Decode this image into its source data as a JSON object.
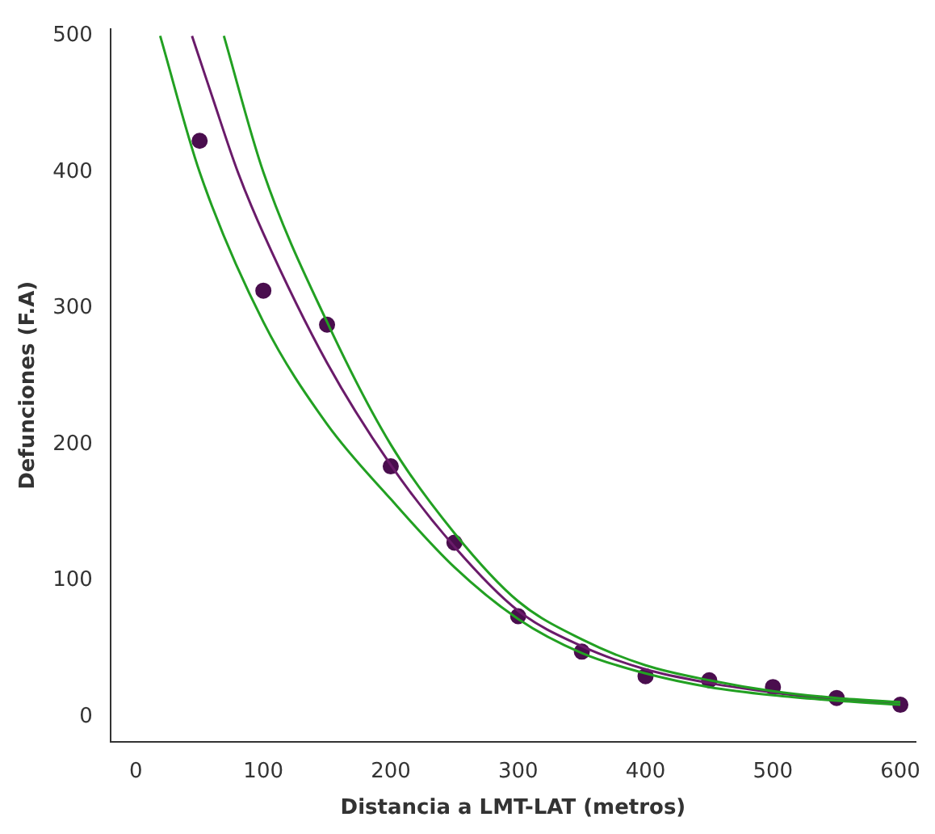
{
  "chart_data": {
    "type": "scatter",
    "xlabel": "Distancia a LMT-LAT (metros)",
    "ylabel": "Defunciones (F.A)",
    "xlim": [
      -20,
      612
    ],
    "ylim": [
      -18,
      505
    ],
    "xticks": [
      0,
      100,
      200,
      300,
      400,
      500,
      600
    ],
    "yticks": [
      0,
      100,
      200,
      300,
      400,
      500
    ],
    "grid": false,
    "marker": "circle",
    "series": [
      {
        "type": "line",
        "marker": "none",
        "color": "#22a022",
        "x": [
          69,
          100,
          150,
          200,
          250,
          300,
          350,
          400,
          450,
          500,
          550,
          600
        ],
        "values": [
          500,
          400,
          290,
          200,
          135,
          85,
          57,
          38,
          27,
          19,
          14,
          11
        ]
      },
      {
        "type": "line",
        "marker": "none",
        "color": "#22a022",
        "x": [
          19,
          50,
          100,
          150,
          200,
          250,
          300,
          350,
          400,
          450,
          500,
          550,
          600
        ],
        "values": [
          500,
          400,
          290,
          215,
          160,
          110,
          72,
          47,
          32,
          22,
          16,
          12,
          9
        ]
      },
      {
        "type": "line",
        "marker": "none",
        "color": "#6a1b6a",
        "x": [
          44,
          60,
          80,
          100,
          150,
          200,
          250,
          300,
          350,
          400,
          450,
          500,
          550,
          600
        ],
        "values": [
          500,
          455,
          400,
          355,
          260,
          185,
          125,
          78,
          52,
          35,
          25,
          18,
          13,
          10
        ]
      },
      {
        "color": "#4a0e4e",
        "x": [
          50,
          100,
          150,
          200,
          250,
          300,
          350,
          400,
          450,
          500,
          550,
          600
        ],
        "values": [
          423,
          313,
          288,
          184,
          128,
          74,
          48,
          30,
          27,
          22,
          14,
          9
        ]
      }
    ]
  }
}
